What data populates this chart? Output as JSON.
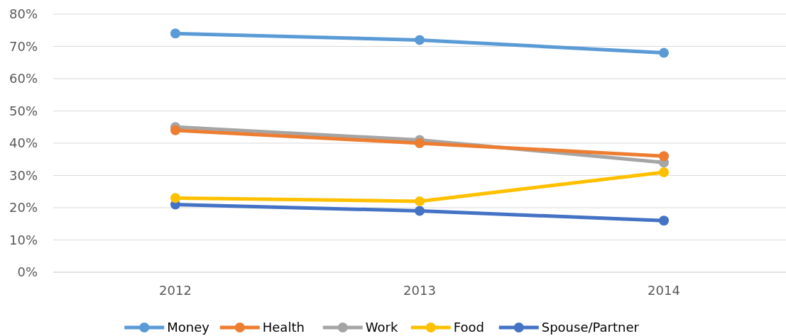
{
  "chart_data": {
    "type": "line",
    "categories": [
      "2012",
      "2013",
      "2014"
    ],
    "series": [
      {
        "name": "Money",
        "color": "#5b9bd5",
        "values": [
          74,
          72,
          68
        ]
      },
      {
        "name": "Health",
        "color": "#ed7d31",
        "values": [
          44,
          40,
          36
        ]
      },
      {
        "name": "Work",
        "color": "#a5a5a5",
        "values": [
          45,
          41,
          34
        ]
      },
      {
        "name": "Food",
        "color": "#ffc000",
        "values": [
          23,
          22,
          31
        ]
      },
      {
        "name": "Spouse/Partner",
        "color": "#4472c4",
        "values": [
          21,
          19,
          16
        ]
      }
    ],
    "ylim": [
      0,
      80
    ],
    "yticks": [
      {
        "value": 0,
        "label": "0%"
      },
      {
        "value": 10,
        "label": "10%"
      },
      {
        "value": 20,
        "label": "20%"
      },
      {
        "value": 30,
        "label": "30%"
      },
      {
        "value": 40,
        "label": "40%"
      },
      {
        "value": 50,
        "label": "50%"
      },
      {
        "value": 60,
        "label": "60%"
      },
      {
        "value": 70,
        "label": "70%"
      },
      {
        "value": 80,
        "label": "80%"
      }
    ],
    "grid": "y",
    "legend": "bottom",
    "marker": "circle",
    "line_style": "solid"
  }
}
